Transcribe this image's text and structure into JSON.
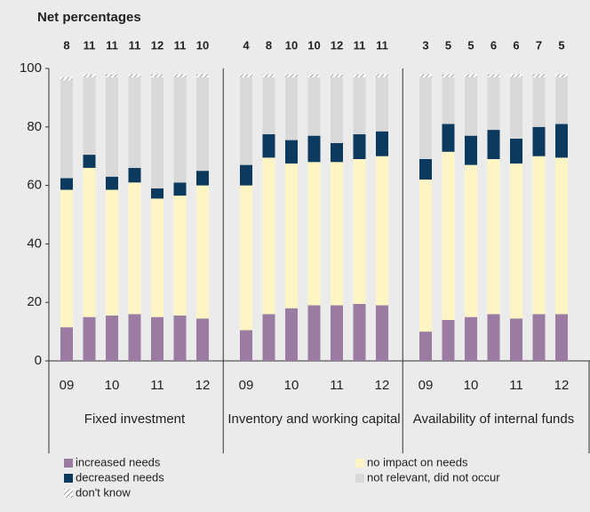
{
  "chart_data": {
    "type": "bar",
    "stacked": true,
    "title": "Net percentages",
    "groups": [
      {
        "name": "Fixed investment",
        "net": [
          8,
          11,
          11,
          11,
          12,
          11,
          10
        ]
      },
      {
        "name": "Inventory and working capital",
        "net": [
          4,
          8,
          10,
          10,
          12,
          11,
          11
        ]
      },
      {
        "name": "Availability of internal funds",
        "net": [
          3,
          5,
          5,
          6,
          6,
          7,
          5
        ]
      }
    ],
    "categories": [
      "09",
      null,
      "10",
      null,
      "11",
      null,
      "12",
      "09",
      null,
      "10",
      null,
      "11",
      null,
      "12",
      "09",
      null,
      "10",
      null,
      "11",
      null,
      "12"
    ],
    "series": [
      {
        "name": "increased needs",
        "color": "#9b7ba1",
        "values": [
          11.5,
          15,
          15.5,
          16,
          15,
          15.5,
          14.5,
          10.5,
          16,
          18,
          19,
          19,
          19.5,
          19,
          10,
          14,
          15,
          16,
          14.5,
          16,
          16
        ]
      },
      {
        "name": "no impact on needs",
        "color": "#fff4c4",
        "values": [
          47,
          51,
          43,
          45,
          40.5,
          41,
          45.5,
          49.5,
          53.5,
          49.5,
          49,
          49,
          49.5,
          51,
          52,
          57.5,
          52,
          53,
          53,
          54,
          53.5
        ]
      },
      {
        "name": "decreased needs",
        "color": "#0c3a5e",
        "values": [
          4,
          4.5,
          4.5,
          5,
          3.5,
          4.5,
          5,
          7,
          8,
          8,
          9,
          6.5,
          8.5,
          8.5,
          7,
          9.5,
          10,
          10,
          8.5,
          10,
          11.5
        ]
      },
      {
        "name": "not relevant, did not occur",
        "color": "#d9d9d9",
        "values": [
          33.5,
          26.5,
          34,
          31,
          38,
          36,
          32,
          30,
          19.5,
          21.5,
          20,
          22.5,
          19.5,
          18.5,
          28,
          16,
          20,
          18,
          21,
          17,
          16
        ]
      },
      {
        "name": "don't know",
        "color": "#7f7f7f",
        "pattern": "hatch",
        "values": [
          1,
          1,
          1,
          1,
          1,
          1,
          1,
          1,
          1,
          1,
          1,
          1,
          1,
          1,
          1,
          1,
          1,
          1,
          1,
          1,
          1
        ]
      }
    ],
    "ylim": [
      0,
      100
    ],
    "yticks": [
      0,
      20,
      40,
      60,
      80,
      100
    ],
    "grid": false
  }
}
